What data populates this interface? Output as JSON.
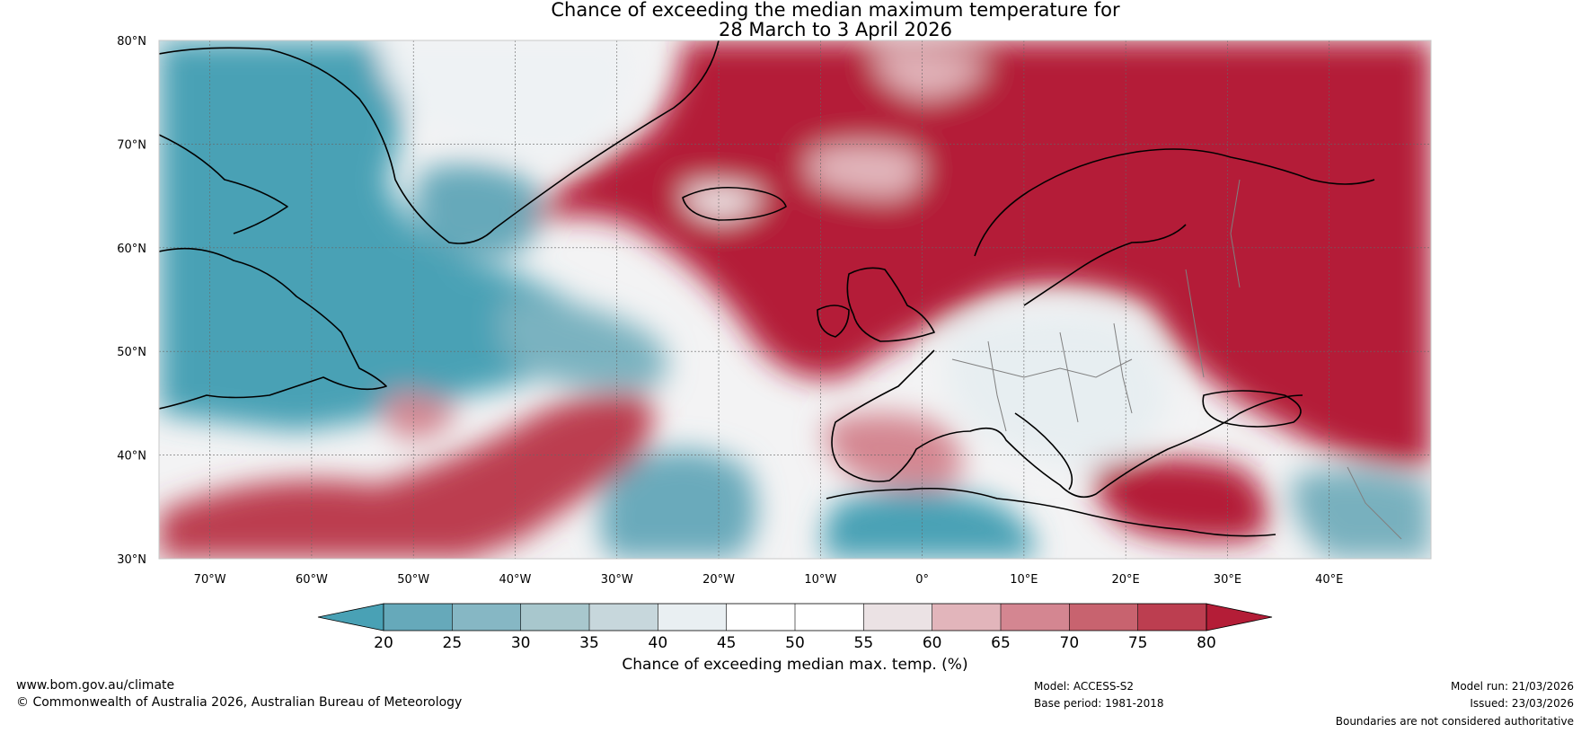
{
  "title": {
    "line1": "Chance of exceeding the median maximum temperature for",
    "line2": "28 March to 3 April 2026"
  },
  "map": {
    "region": "North Atlantic and Europe",
    "lat_range": [
      30,
      80
    ],
    "lon_range": [
      -75,
      50
    ],
    "lat_ticks": [
      {
        "value": 80,
        "label": "80°N"
      },
      {
        "value": 70,
        "label": "70°N"
      },
      {
        "value": 60,
        "label": "60°N"
      },
      {
        "value": 50,
        "label": "50°N"
      },
      {
        "value": 40,
        "label": "40°N"
      },
      {
        "value": 30,
        "label": "30°N"
      }
    ],
    "lon_ticks": [
      {
        "value": -70,
        "label": "70°W"
      },
      {
        "value": -60,
        "label": "60°W"
      },
      {
        "value": -50,
        "label": "50°W"
      },
      {
        "value": -40,
        "label": "40°W"
      },
      {
        "value": -30,
        "label": "30°W"
      },
      {
        "value": -20,
        "label": "20°W"
      },
      {
        "value": -10,
        "label": "10°W"
      },
      {
        "value": 0,
        "label": "0°"
      },
      {
        "value": 10,
        "label": "10°E"
      },
      {
        "value": 20,
        "label": "20°E"
      },
      {
        "value": 30,
        "label": "30°E"
      },
      {
        "value": 40,
        "label": "40°E"
      }
    ],
    "land_color": "#7a7a7a",
    "coast_color": "#000000",
    "border_color": "#808080"
  },
  "colorbar": {
    "label": "Chance of exceeding median max. temp. (%)",
    "ticks": [
      20,
      25,
      30,
      35,
      40,
      45,
      50,
      55,
      60,
      65,
      70,
      75,
      80
    ],
    "colors": [
      "#49a1b5",
      "#66a9ba",
      "#86b7c4",
      "#a8c7cd",
      "#c7d7dc",
      "#e9eff2",
      "#ffffff",
      "#ffffff",
      "#ebe2e4",
      "#e2b5bb",
      "#d48691",
      "#c8636f",
      "#bc3e50",
      "#b41d37"
    ]
  },
  "footer": {
    "website": "www.bom.gov.au/climate",
    "copyright": "© Commonwealth of Australia 2026, Australian Bureau of Meteorology",
    "model": "Model: ACCESS-S2",
    "base_period": "Base period: 1981-2018",
    "model_run": "Model run: 21/03/2026",
    "issued": "Issued: 23/03/2026",
    "disclaimer": "Boundaries are not considered authoritative"
  }
}
